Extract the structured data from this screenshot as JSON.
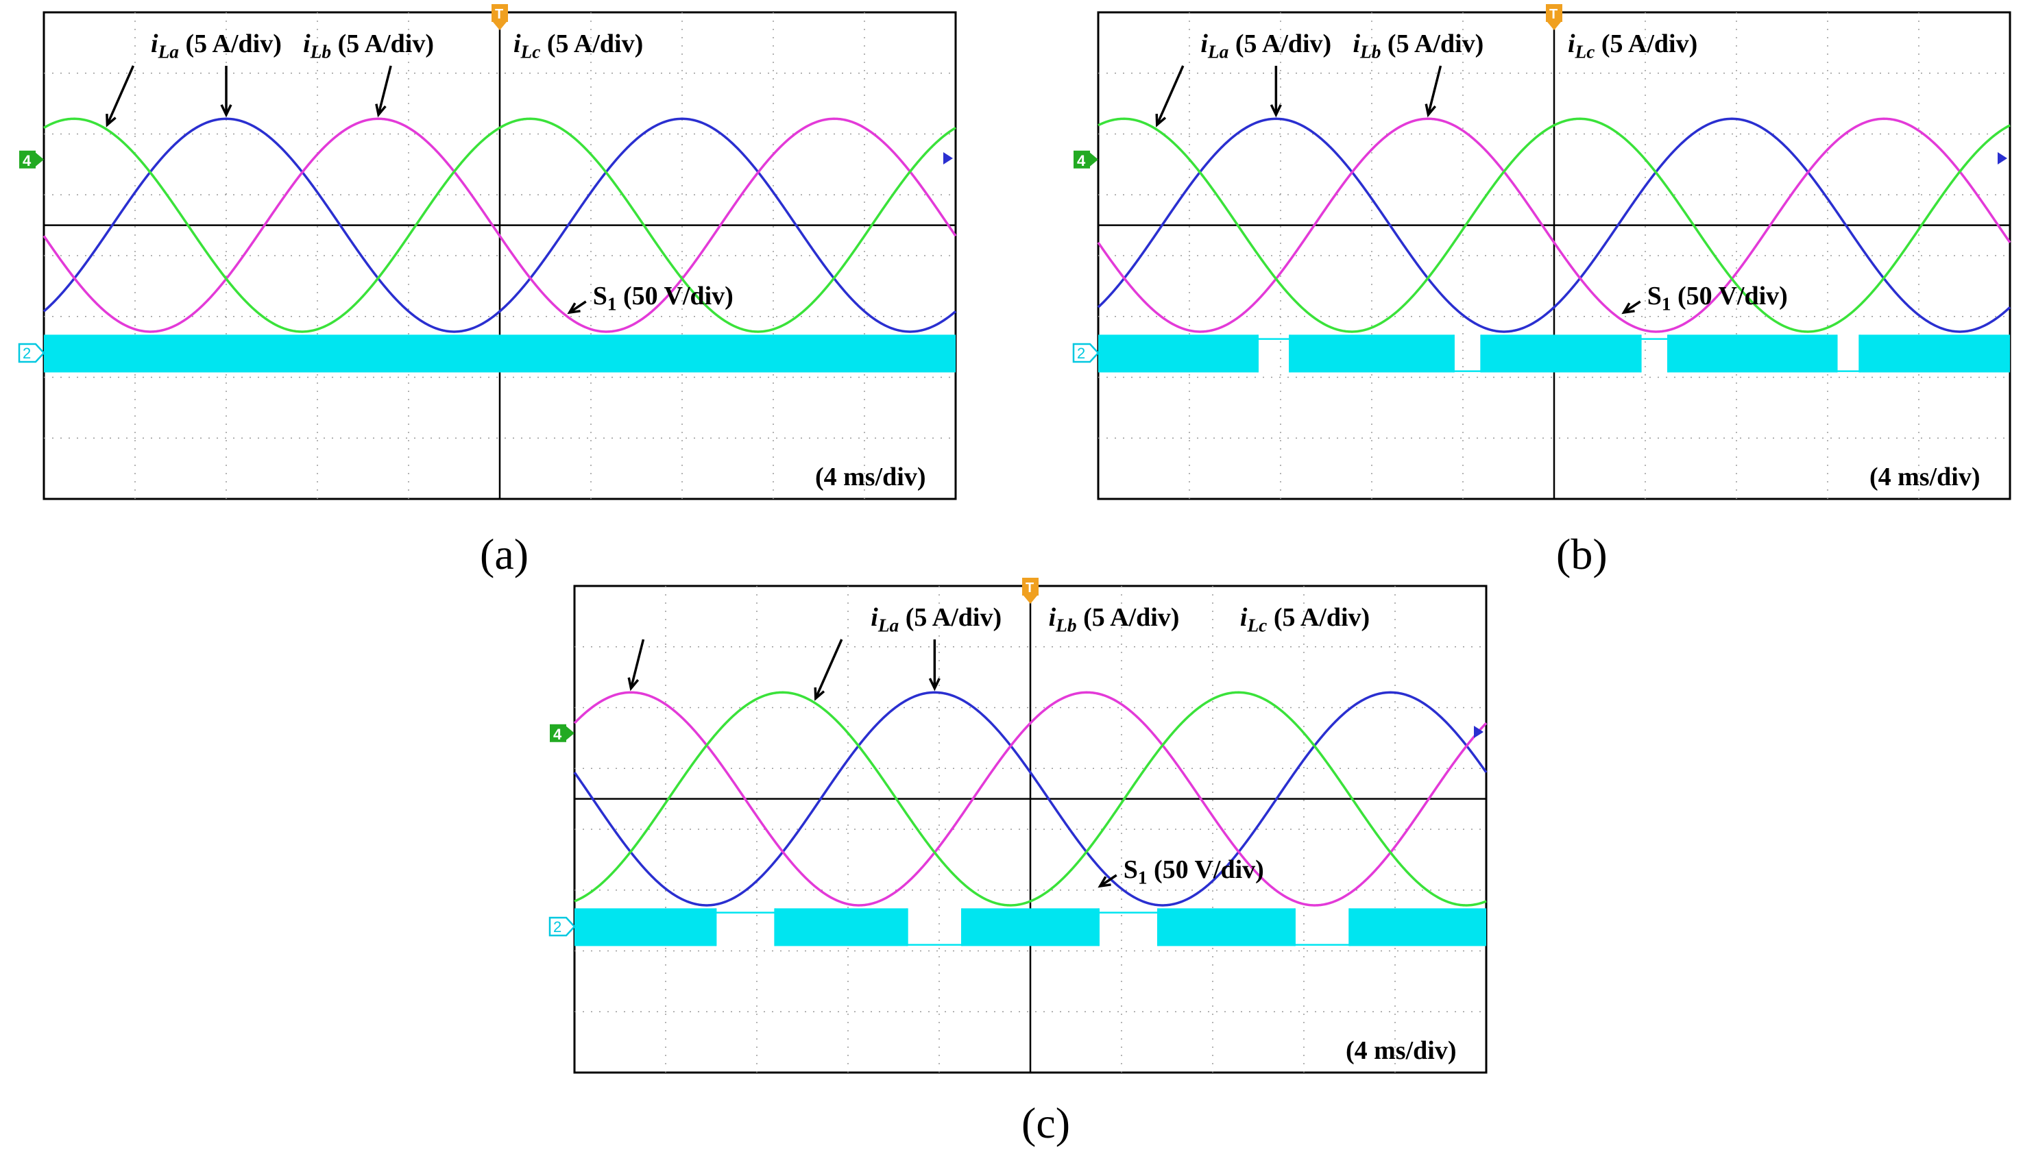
{
  "colors": {
    "iLa": "#2a2fd0",
    "iLb": "#e33ad8",
    "iLc": "#3ae23a",
    "S1": "#00e5f0",
    "frame": "#000000",
    "grid": "#9a9a9a",
    "ch4_marker": "#22aa22",
    "ch2_marker": "#00c8e0",
    "trigger_marker": "#f0a020"
  },
  "chart_data": [
    {
      "type": "line",
      "panel_label": "(a)",
      "time_scale": "(4 ms/div)",
      "grid": true,
      "x_divisions": 10,
      "y_divisions": 8,
      "series": [
        {
          "name": "iLa",
          "label_main": "i",
          "label_sub": "La",
          "label_unit": " (5 A/div)",
          "amplitude_div": 1.75,
          "period_div": 5.0,
          "peak_at_div": 2.0
        },
        {
          "name": "iLb",
          "label_main": "i",
          "label_sub": "Lb",
          "label_unit": " (5 A/div)",
          "amplitude_div": 1.75,
          "period_div": 5.0,
          "peak_at_div": 3.67
        },
        {
          "name": "iLc",
          "label_main": "i",
          "label_sub": "Lc",
          "label_unit": " (5 A/div)",
          "amplitude_div": 1.75,
          "period_div": 5.0,
          "peak_at_div": 0.33
        }
      ],
      "switching": {
        "name": "S1",
        "label_main": "S",
        "label_sub": "1",
        "label_unit": " (50 V/div)",
        "off_intervals_div": []
      }
    },
    {
      "type": "line",
      "panel_label": "(b)",
      "time_scale": "(4 ms/div)",
      "grid": true,
      "x_divisions": 10,
      "y_divisions": 8,
      "series": [
        {
          "name": "iLa",
          "label_main": "i",
          "label_sub": "La",
          "label_unit": " (5 A/div)",
          "amplitude_div": 1.75,
          "period_div": 5.0,
          "peak_at_div": 1.95
        },
        {
          "name": "iLb",
          "label_main": "i",
          "label_sub": "Lb",
          "label_unit": " (5 A/div)",
          "amplitude_div": 1.75,
          "period_div": 5.0,
          "peak_at_div": 3.62
        },
        {
          "name": "iLc",
          "label_main": "i",
          "label_sub": "Lc",
          "label_unit": " (5 A/div)",
          "amplitude_div": 1.75,
          "period_div": 5.0,
          "peak_at_div": 0.28
        }
      ],
      "switching": {
        "name": "S1",
        "label_main": "S",
        "label_sub": "1",
        "label_unit": " (50 V/div)",
        "off_intervals_div": [
          [
            1.75,
            2.1
          ],
          [
            3.9,
            4.2
          ],
          [
            5.95,
            6.25
          ],
          [
            8.1,
            8.35
          ]
        ]
      }
    },
    {
      "type": "line",
      "panel_label": "(c)",
      "time_scale": "(4 ms/div)",
      "grid": true,
      "x_divisions": 10,
      "y_divisions": 8,
      "series": [
        {
          "name": "iLa",
          "label_main": "i",
          "label_sub": "La",
          "label_unit": " (5 A/div)",
          "amplitude_div": 1.75,
          "period_div": 5.0,
          "peak_at_div": 3.95
        },
        {
          "name": "iLb",
          "label_main": "i",
          "label_sub": "Lb",
          "label_unit": " (5 A/div)",
          "amplitude_div": 1.75,
          "period_div": 5.0,
          "peak_at_div": 0.62
        },
        {
          "name": "iLc",
          "label_main": "i",
          "label_sub": "Lc",
          "label_unit": " (5 A/div)",
          "amplitude_div": 1.75,
          "period_div": 5.0,
          "peak_at_div": 2.28
        }
      ],
      "switching": {
        "name": "S1",
        "label_main": "S",
        "label_sub": "1",
        "label_unit": " (50 V/div)",
        "off_intervals_div": [
          [
            1.55,
            2.2
          ],
          [
            3.65,
            4.25
          ],
          [
            5.75,
            6.4
          ],
          [
            7.9,
            8.5
          ]
        ]
      }
    }
  ]
}
